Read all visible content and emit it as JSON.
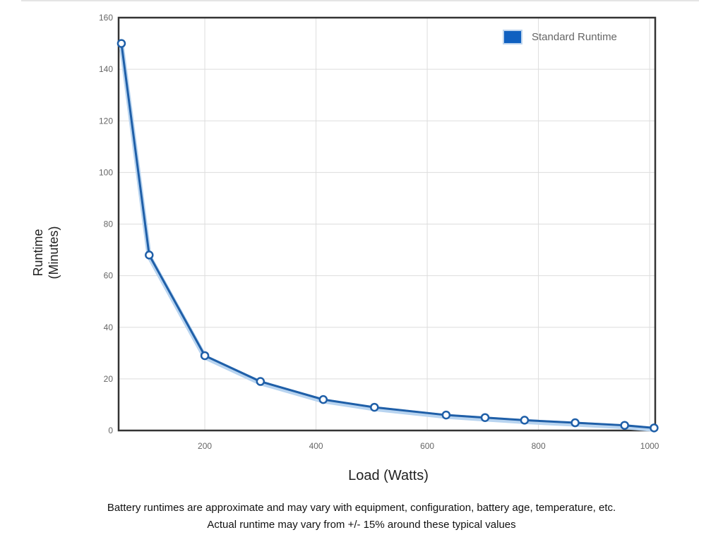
{
  "chart_data": {
    "type": "line",
    "title": "",
    "xlabel": "Load (Watts)",
    "ylabel_lines": [
      "Runtime",
      "(Minutes)"
    ],
    "xlim": [
      45,
      1010
    ],
    "ylim": [
      0,
      160
    ],
    "xticks": [
      200,
      400,
      600,
      800,
      1000
    ],
    "yticks": [
      0,
      20,
      40,
      60,
      80,
      100,
      120,
      140,
      160
    ],
    "grid": true,
    "legend_position": "top-right",
    "series": [
      {
        "name": "Standard Runtime",
        "color": "#1f5fa8",
        "x": [
          50,
          100,
          200,
          300,
          413,
          505,
          634,
          704,
          775,
          866,
          955,
          1008
        ],
        "y": [
          150,
          68,
          29,
          19,
          12,
          9,
          6,
          5,
          4,
          3,
          2,
          1
        ]
      }
    ]
  },
  "notes": [
    "Battery runtimes are approximate and may vary with equipment, configuration, battery age, temperature, etc.",
    "Actual runtime may vary from +/- 15% around these typical values"
  ]
}
